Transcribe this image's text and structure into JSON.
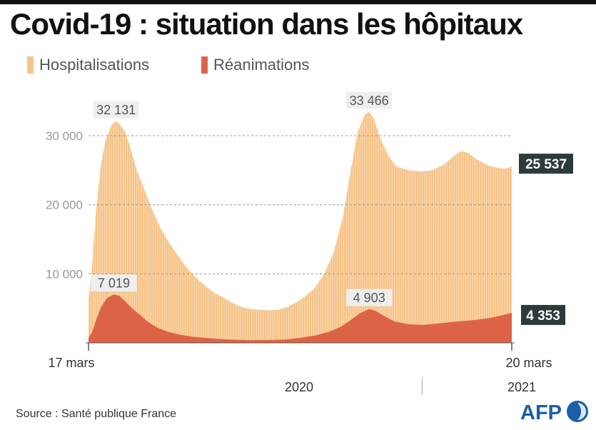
{
  "title": "Covid-19 : situation dans les hôpitaux",
  "source": "Source : Santé publique France",
  "logo_text": "AFP",
  "colors": {
    "hospitalisations": "#f6c489",
    "reanimations": "#dd6348",
    "hospitalisations_edge": "#ffffff",
    "grid": "#999999",
    "label_box": "#eeeeee",
    "end_label_box": "#2d3a3c",
    "afp_blue": "#1b5fa8"
  },
  "chart_data": {
    "type": "area",
    "title": "Covid-19 : situation dans les hôpitaux",
    "xlabel": "",
    "ylabel": "",
    "x_start": "2020-03-17",
    "x_end": "2021-03-20",
    "ylim": [
      0,
      35000
    ],
    "yticks": [
      10000,
      20000,
      30000
    ],
    "ytick_labels": [
      "10 000",
      "20 000",
      "30 000"
    ],
    "grid": true,
    "legend_position": "top-left",
    "x_labels": {
      "start": "17 mars",
      "end": "20 mars",
      "year_2020": "2020",
      "year_2021": "2021"
    },
    "series": [
      {
        "name": "Hospitalisations",
        "points": [
          [
            "2020-03-17",
            6000
          ],
          [
            "2020-03-20",
            11000
          ],
          [
            "2020-03-24",
            20000
          ],
          [
            "2020-03-28",
            26000
          ],
          [
            "2020-04-01",
            29500
          ],
          [
            "2020-04-06",
            31500
          ],
          [
            "2020-04-10",
            32131
          ],
          [
            "2020-04-14",
            31500
          ],
          [
            "2020-04-18",
            30500
          ],
          [
            "2020-04-22",
            28500
          ],
          [
            "2020-04-28",
            25000
          ],
          [
            "2020-05-05",
            22000
          ],
          [
            "2020-05-12",
            19000
          ],
          [
            "2020-05-19",
            16500
          ],
          [
            "2020-05-26",
            14500
          ],
          [
            "2020-06-02",
            12800
          ],
          [
            "2020-06-10",
            11000
          ],
          [
            "2020-06-18",
            9500
          ],
          [
            "2020-06-26",
            8300
          ],
          [
            "2020-07-04",
            7300
          ],
          [
            "2020-07-12",
            6600
          ],
          [
            "2020-07-20",
            5800
          ],
          [
            "2020-07-28",
            5200
          ],
          [
            "2020-08-05",
            4900
          ],
          [
            "2020-08-13",
            4800
          ],
          [
            "2020-08-21",
            4700
          ],
          [
            "2020-08-29",
            4800
          ],
          [
            "2020-09-06",
            5200
          ],
          [
            "2020-09-14",
            5900
          ],
          [
            "2020-09-22",
            6800
          ],
          [
            "2020-09-30",
            8000
          ],
          [
            "2020-10-08",
            10000
          ],
          [
            "2020-10-16",
            13000
          ],
          [
            "2020-10-24",
            18000
          ],
          [
            "2020-10-31",
            25000
          ],
          [
            "2020-11-06",
            30500
          ],
          [
            "2020-11-12",
            33000
          ],
          [
            "2020-11-16",
            33466
          ],
          [
            "2020-11-20",
            32500
          ],
          [
            "2020-11-26",
            29500
          ],
          [
            "2020-12-03",
            27000
          ],
          [
            "2020-12-10",
            25500
          ],
          [
            "2020-12-20",
            25000
          ],
          [
            "2020-12-31",
            24800
          ],
          [
            "2021-01-10",
            25000
          ],
          [
            "2021-01-20",
            25800
          ],
          [
            "2021-01-28",
            27000
          ],
          [
            "2021-02-04",
            27800
          ],
          [
            "2021-02-10",
            27500
          ],
          [
            "2021-02-18",
            26500
          ],
          [
            "2021-02-26",
            25800
          ],
          [
            "2021-03-06",
            25400
          ],
          [
            "2021-03-14",
            25200
          ],
          [
            "2021-03-20",
            25537
          ]
        ],
        "annotations": [
          {
            "date": "2020-04-10",
            "value": 32131,
            "label": "32 131"
          },
          {
            "date": "2020-11-16",
            "value": 33466,
            "label": "33 466"
          }
        ],
        "end_label": "25 537"
      },
      {
        "name": "Réanimations",
        "points": [
          [
            "2020-03-17",
            700
          ],
          [
            "2020-03-20",
            1500
          ],
          [
            "2020-03-24",
            3500
          ],
          [
            "2020-03-28",
            5200
          ],
          [
            "2020-04-02",
            6500
          ],
          [
            "2020-04-08",
            7019
          ],
          [
            "2020-04-13",
            6800
          ],
          [
            "2020-04-18",
            6000
          ],
          [
            "2020-04-24",
            5000
          ],
          [
            "2020-05-01",
            4000
          ],
          [
            "2020-05-08",
            3000
          ],
          [
            "2020-05-16",
            2200
          ],
          [
            "2020-05-25",
            1600
          ],
          [
            "2020-06-04",
            1200
          ],
          [
            "2020-06-15",
            900
          ],
          [
            "2020-06-28",
            700
          ],
          [
            "2020-07-15",
            500
          ],
          [
            "2020-08-01",
            400
          ],
          [
            "2020-08-20",
            400
          ],
          [
            "2020-09-05",
            500
          ],
          [
            "2020-09-20",
            800
          ],
          [
            "2020-10-01",
            1100
          ],
          [
            "2020-10-12",
            1600
          ],
          [
            "2020-10-22",
            2300
          ],
          [
            "2020-10-31",
            3300
          ],
          [
            "2020-11-08",
            4300
          ],
          [
            "2020-11-16",
            4903
          ],
          [
            "2020-11-22",
            4600
          ],
          [
            "2020-11-30",
            3800
          ],
          [
            "2020-12-08",
            3100
          ],
          [
            "2020-12-20",
            2700
          ],
          [
            "2021-01-01",
            2600
          ],
          [
            "2021-01-15",
            2800
          ],
          [
            "2021-02-01",
            3100
          ],
          [
            "2021-02-15",
            3300
          ],
          [
            "2021-03-01",
            3600
          ],
          [
            "2021-03-12",
            4000
          ],
          [
            "2021-03-20",
            4353
          ]
        ],
        "annotations": [
          {
            "date": "2020-04-08",
            "value": 7019,
            "label": "7 019"
          },
          {
            "date": "2020-11-16",
            "value": 4903,
            "label": "4 903"
          }
        ],
        "end_label": "4 353"
      }
    ]
  }
}
